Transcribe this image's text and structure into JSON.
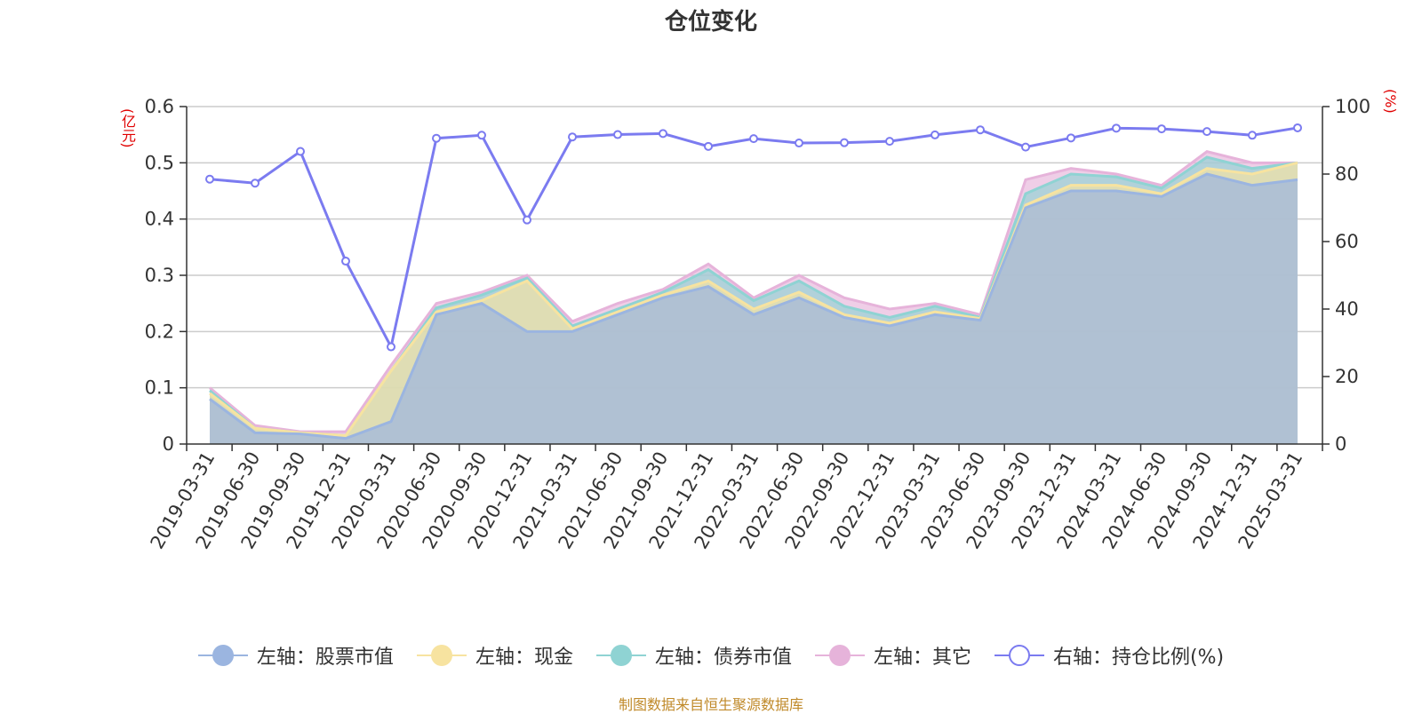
{
  "title": "仓位变化",
  "left_axis_unit": "(亿元)",
  "right_axis_unit": "(%)",
  "footer_text": "制图数据来自恒生聚源数据库",
  "colors": {
    "stock": "#9bb5e0",
    "cash": "#f7e3a0",
    "bond": "#8fd3d3",
    "other": "#e6b3da",
    "ratio": "#7b7bf0",
    "grid": "#cccccc",
    "axis": "#333333",
    "unit": "#e00000",
    "footer": "#c08a2a"
  },
  "legend": [
    {
      "label": "左轴：股票市值",
      "key": "stock",
      "hollow": false
    },
    {
      "label": "左轴：现金",
      "key": "cash",
      "hollow": false
    },
    {
      "label": "左轴：债券市值",
      "key": "bond",
      "hollow": false
    },
    {
      "label": "左轴：其它",
      "key": "other",
      "hollow": false
    },
    {
      "label": "右轴：持仓比例(%)",
      "key": "ratio",
      "hollow": true
    }
  ],
  "chart_data": {
    "type": "area",
    "stacked": true,
    "categories": [
      "2019-03-31",
      "2019-06-30",
      "2019-09-30",
      "2019-12-31",
      "2020-03-31",
      "2020-06-30",
      "2020-09-30",
      "2020-12-31",
      "2021-03-31",
      "2021-06-30",
      "2021-09-30",
      "2021-12-31",
      "2022-03-31",
      "2022-06-30",
      "2022-09-30",
      "2022-12-31",
      "2023-03-31",
      "2023-06-30",
      "2023-09-30",
      "2023-12-31",
      "2024-03-31",
      "2024-06-30",
      "2024-09-30",
      "2024-12-31",
      "2025-03-31"
    ],
    "left_axis": {
      "min": 0,
      "max": 0.6,
      "ticks": [
        "0",
        "0.1",
        "0.2",
        "0.3",
        "0.4",
        "0.5",
        "0.6"
      ]
    },
    "right_axis": {
      "min": 0,
      "max": 100,
      "ticks": [
        "0",
        "20",
        "40",
        "60",
        "80",
        "100"
      ]
    },
    "grid": true,
    "legend_position": "bottom",
    "series": [
      {
        "name": "左轴：股票市值",
        "axis": "left",
        "values": [
          0.08,
          0.02,
          0.018,
          0.01,
          0.04,
          0.23,
          0.25,
          0.2,
          0.2,
          0.23,
          0.26,
          0.28,
          0.23,
          0.26,
          0.225,
          0.21,
          0.23,
          0.22,
          0.42,
          0.45,
          0.45,
          0.44,
          0.48,
          0.46,
          0.47
        ]
      },
      {
        "name": "左轴：现金",
        "axis": "left",
        "values": [
          0.01,
          0.008,
          0.002,
          0.005,
          0.09,
          0.005,
          0.005,
          0.09,
          0.005,
          0.005,
          0.005,
          0.01,
          0.01,
          0.01,
          0.005,
          0.005,
          0.005,
          0.003,
          0.005,
          0.01,
          0.01,
          0.005,
          0.01,
          0.02,
          0.03
        ]
      },
      {
        "name": "左轴：债券市值",
        "axis": "left",
        "values": [
          0.005,
          0.0,
          0.0,
          0.0,
          0.0,
          0.007,
          0.01,
          0.005,
          0.005,
          0.005,
          0.005,
          0.02,
          0.015,
          0.02,
          0.015,
          0.01,
          0.01,
          0.002,
          0.02,
          0.02,
          0.015,
          0.01,
          0.02,
          0.01,
          0.0
        ]
      },
      {
        "name": "左轴：其它",
        "axis": "left",
        "values": [
          0.005,
          0.005,
          0.002,
          0.007,
          0.01,
          0.008,
          0.005,
          0.005,
          0.008,
          0.01,
          0.005,
          0.01,
          0.005,
          0.01,
          0.015,
          0.015,
          0.005,
          0.005,
          0.025,
          0.01,
          0.005,
          0.005,
          0.01,
          0.01,
          0.0
        ]
      },
      {
        "name": "右轴：持仓比例(%)",
        "axis": "right",
        "type": "line",
        "values": [
          78.5,
          77.3,
          86.7,
          54.2,
          28.8,
          90.6,
          91.5,
          66.4,
          91.0,
          91.7,
          92.0,
          88.2,
          90.5,
          89.2,
          89.3,
          89.7,
          91.6,
          93.1,
          88.0,
          90.7,
          93.6,
          93.4,
          92.6,
          91.5,
          93.7
        ]
      }
    ]
  }
}
